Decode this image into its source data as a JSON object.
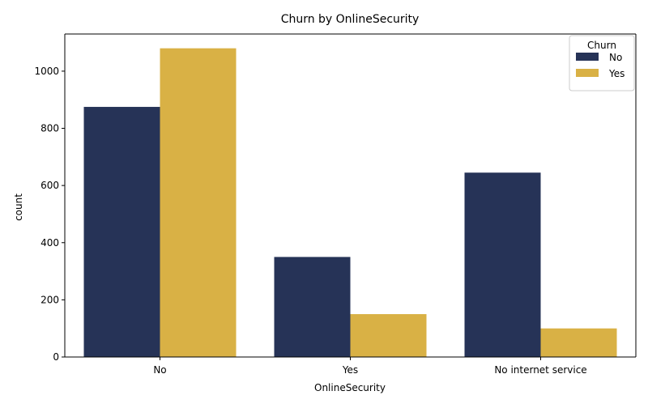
{
  "chart_data": {
    "type": "bar",
    "title": "Churn by OnlineSecurity",
    "xlabel": "OnlineSecurity",
    "ylabel": "count",
    "categories": [
      "No",
      "Yes",
      "No internet service"
    ],
    "series": [
      {
        "name": "No",
        "values": [
          875,
          350,
          645
        ],
        "color": "#263357"
      },
      {
        "name": "Yes",
        "values": [
          1080,
          150,
          100
        ],
        "color": "#d9b145"
      }
    ],
    "ylim": [
      0,
      1130
    ],
    "yticks": [
      0,
      200,
      400,
      600,
      800,
      1000
    ],
    "legend": {
      "title": "Churn",
      "placement": "top-right"
    },
    "grid": false
  }
}
